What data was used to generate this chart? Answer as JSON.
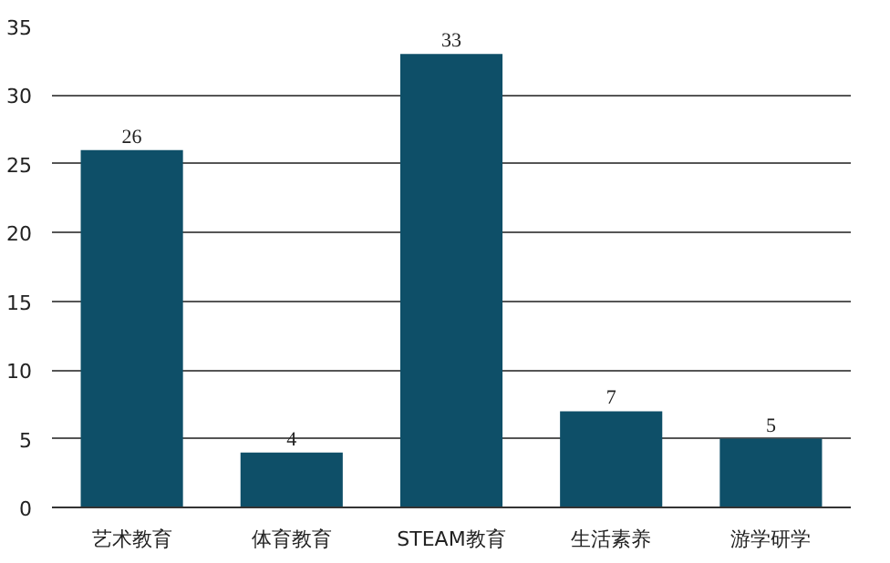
{
  "chart_data": {
    "type": "bar",
    "categories": [
      "艺术教育",
      "体育教育",
      "STEAM教育",
      "生活素养",
      "游学研学"
    ],
    "values": [
      26,
      4,
      33,
      7,
      5
    ],
    "color": "#0e4f68",
    "ylim": [
      0,
      35
    ],
    "yticks": [
      0,
      5,
      10,
      15,
      20,
      25,
      30,
      35
    ],
    "grid": "y",
    "data_labels": true
  }
}
